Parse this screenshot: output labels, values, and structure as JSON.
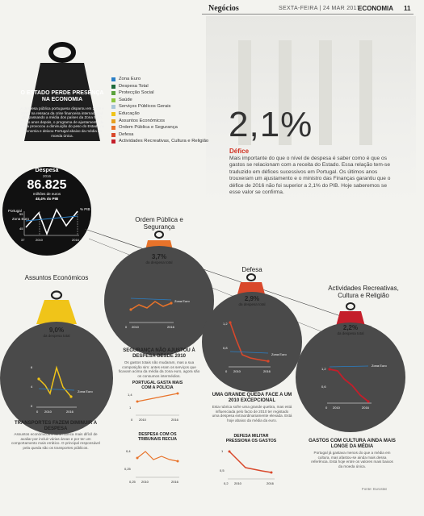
{
  "header": {
    "brand": "Negócios",
    "date": "SEXTA-FEIRA | 24 MAR 2017",
    "section": "ECONOMIA",
    "page": "11"
  },
  "intro": {
    "title": "O ESTADO PERDE PRESENÇA NA ECONOMIA",
    "body": "A despesa pública portuguesa disparou em 2009 e 2010, na ressaca da crise financeira internacional, ultrapassando a média dos países da Zona Euro. Cinco anos depois, o programa de ajustamento da troika provocou a diminuição do peso do Estado na economia e deixou Portugal abaixo da média da moeda única."
  },
  "legend": [
    {
      "label": "Zona Euro",
      "color": "#2a7fc6"
    },
    {
      "label": "Despesa Total",
      "color": "#1e6b3a"
    },
    {
      "label": "Protecção Social",
      "color": "#5aa23c"
    },
    {
      "label": "Saúde",
      "color": "#8cc63f"
    },
    {
      "label": "Serviços Públicos Gerais",
      "color": "#a9c6d8"
    },
    {
      "label": "Educação",
      "color": "#f0c419"
    },
    {
      "label": "Assuntos Económicos",
      "color": "#e6a020"
    },
    {
      "label": "Ordem Pública e Segurança",
      "color": "#e8732a"
    },
    {
      "label": "Defesa",
      "color": "#d9482b"
    },
    {
      "label": "Actividades Recreativas, Cultura e Religião",
      "color": "#c41e2a"
    }
  ],
  "deficit": {
    "value": "2,1%",
    "heading": "Défice",
    "text": "Mais importante do que o nível de despesa é saber como é que os gastos se relacionam com a receita do Estado. Essa relação tem-se traduzido em défices sucessivos em Portugal. Os últimos anos trouxeram um ajustamento e o ministro das Finanças garantiu que o défice de 2016 não foi superior a 2,1% do PIB. Hoje saberemos se esse valor se confirma."
  },
  "total": {
    "label": "Despesa",
    "year": "2016",
    "value": "86.825",
    "unit": "milhões de euros",
    "share": "48,4% do PIB",
    "portugal": "Portugal",
    "zona": "Zona Euro",
    "pib": "% PIB",
    "y_ticks": [
      "55",
      "45"
    ],
    "x_ticks": [
      "37",
      "2010",
      "2016"
    ]
  },
  "groups": {
    "ordem": {
      "title": "Ordem Pública e Segurança",
      "pct": "3,7%",
      "sub": "da despesa total",
      "zona": "Zona Euro",
      "x": [
        "0",
        "2010",
        "2016"
      ],
      "caption": "SEGURANÇA NÃO AJUSTOU À DESPESA DESDE 2010",
      "body": "Os gastos totais não mudaram, mas a sua composição sim: antes eram os serviços que ficavam acima da média da zona euro, agora são os consumos intermédios."
    },
    "defesa": {
      "title": "Defesa",
      "pct": "2,9%",
      "sub": "da despesa total",
      "zona": "Zona Euro",
      "y": [
        "1,2",
        "0,8"
      ],
      "x": [
        "0",
        "2010",
        "2016"
      ],
      "caption": "UMA GRANDE QUEDA FACE A UM 2010 EXCEPCIONAL",
      "body": "Esta rubrica sofre uma grande quebra, mas está influenciada pelo facto de 2010 ter registado uma despesa extraordinariamente elevada. Está hoje abaixo da média da euro."
    },
    "assuntos": {
      "title": "Assuntos Económicos",
      "pct": "9,0%",
      "sub": "da despesa total",
      "zona": "Zona Euro",
      "y": [
        "6",
        "4",
        "0"
      ],
      "x": [
        "0",
        "2010",
        "2016"
      ],
      "caption": "TRANSPORTES FAZEM DIMINUIR A DESPESA",
      "body": "Assuntos económicos é uma rubrica mais difícil de avaliar por incluir várias áreas e por ter um comportamento mais errático. O principal responsável pela queda são os transportes públicos."
    },
    "cultura": {
      "title": "Actividades Recreativas, Cultura e Religião",
      "pct": "2,2%",
      "sub": "da despesa total",
      "zona": "Zona Euro",
      "y": [
        "1,2",
        "0,6"
      ],
      "x": [
        "0",
        "2010",
        "2016"
      ],
      "caption": "GASTOS COM CULTURA AINDA MAIS LONGE DA MÉDIA",
      "body": "Portugal já gastava menos do que a média em cultura, mas afastou-se ainda mais dessa referência. Está hoje entre os valores mais baixos da moeda única."
    }
  },
  "mini": {
    "policia": {
      "title": "PORTUGAL GASTA MAIS COM A POLÍCIA",
      "y": [
        "1,4",
        "1"
      ],
      "x": [
        "0",
        "2010",
        "2016"
      ]
    },
    "tribunais": {
      "title": "DESPESA COM OS TRIBUNAIS RECUA",
      "y": [
        "0,4",
        "0,25"
      ],
      "x": [
        "0,25",
        "2010",
        "2016"
      ]
    },
    "militar": {
      "title": "DEFESA MILITAR PRESSIONA OS GASTOS",
      "y": [
        "1",
        "0,5"
      ],
      "x": [
        "0,2",
        "2010",
        "2016"
      ]
    }
  },
  "credit": "Fonte: Eurostat",
  "colors": {
    "orange": "#e8732a",
    "red": "#d9482b",
    "yellow": "#f0c419",
    "darkred": "#c41e2a",
    "dark": "#1e1e1e",
    "circle": "#4a4a4a"
  }
}
